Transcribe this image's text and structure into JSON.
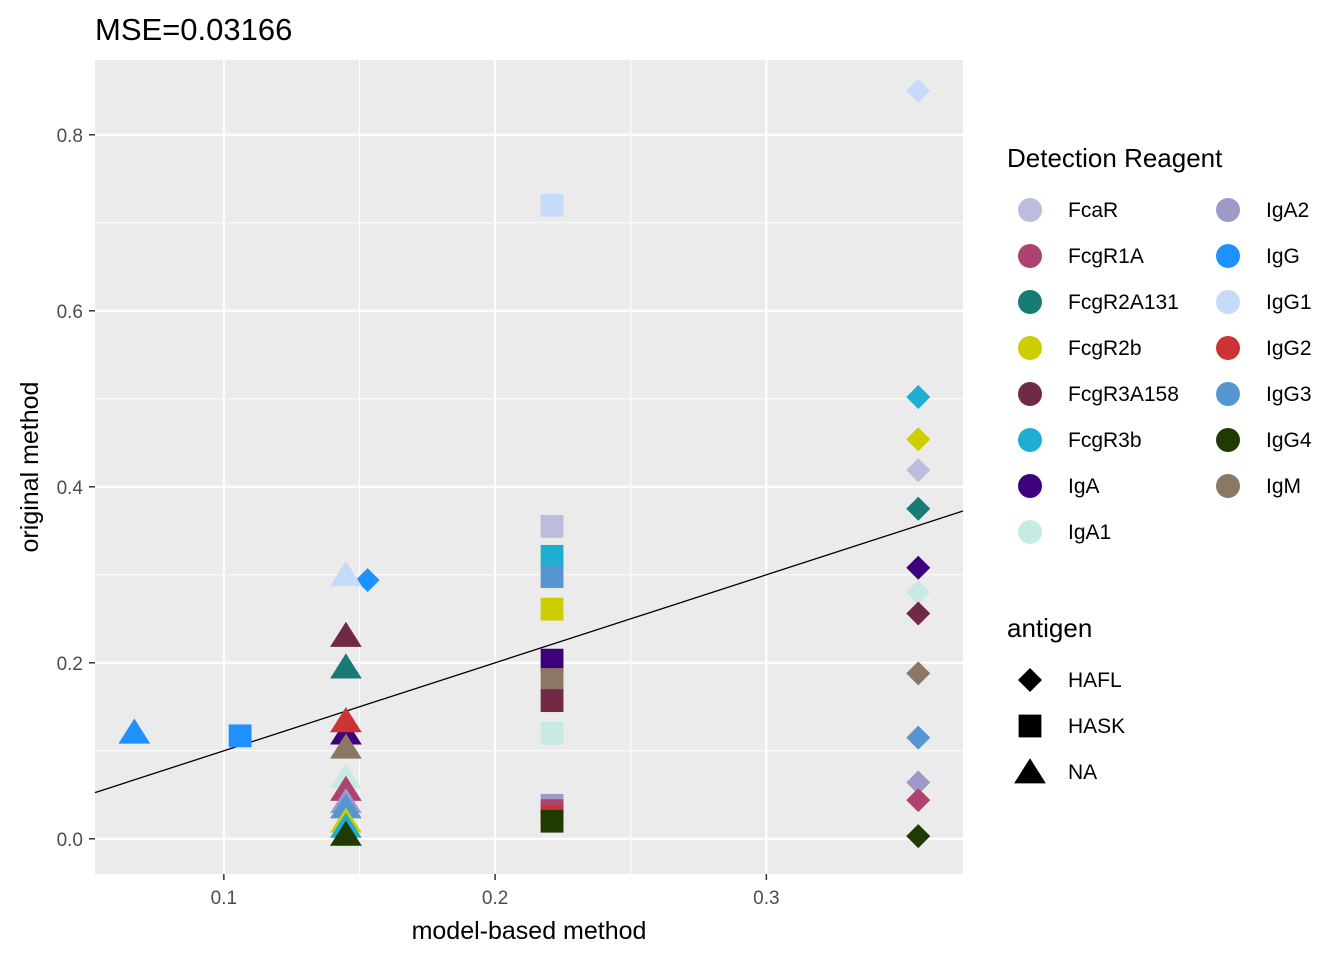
{
  "chart_data": {
    "type": "scatter",
    "title": "MSE=0.03166",
    "xlabel": "model-based method",
    "ylabel": "original method",
    "xlim": [
      0.0525,
      0.3725
    ],
    "ylim": [
      -0.04,
      0.885
    ],
    "x_ticks": [
      {
        "value": 0.1,
        "label": "0.1"
      },
      {
        "value": 0.2,
        "label": "0.2"
      },
      {
        "value": 0.3,
        "label": "0.3"
      }
    ],
    "y_ticks": [
      {
        "value": 0.0,
        "label": "0.0"
      },
      {
        "value": 0.2,
        "label": "0.2"
      },
      {
        "value": 0.4,
        "label": "0.4"
      },
      {
        "value": 0.6,
        "label": "0.6"
      },
      {
        "value": 0.8,
        "label": "0.8"
      }
    ],
    "grid": true,
    "reference_line": {
      "slope": 1,
      "intercept": 0,
      "color": "#000000"
    },
    "color_legend": {
      "title": "Detection Reagent",
      "entries": [
        {
          "label": "FcaR",
          "color": "#BCBCDC"
        },
        {
          "label": "FcgR1A",
          "color": "#AE4371"
        },
        {
          "label": "FcgR2A131",
          "color": "#187A74"
        },
        {
          "label": "FcgR2b",
          "color": "#CDCD00"
        },
        {
          "label": "FcgR3A158",
          "color": "#712A45"
        },
        {
          "label": "FcgR3b",
          "color": "#1FADD1"
        },
        {
          "label": "IgA",
          "color": "#3F007D"
        },
        {
          "label": "IgA1",
          "color": "#C7EAE5"
        },
        {
          "label": "IgA2",
          "color": "#9E9AC8"
        },
        {
          "label": "IgG",
          "color": "#1E90FF"
        },
        {
          "label": "IgG1",
          "color": "#C6DBFA"
        },
        {
          "label": "IgG2",
          "color": "#CB3335"
        },
        {
          "label": "IgG3",
          "color": "#5596D1"
        },
        {
          "label": "IgG4",
          "color": "#203A04"
        },
        {
          "label": "IgM",
          "color": "#8B7764"
        }
      ]
    },
    "shape_legend": {
      "title": "antigen",
      "entries": [
        {
          "label": "HAFL",
          "shape": "diamond"
        },
        {
          "label": "HASK",
          "shape": "square"
        },
        {
          "label": "NA",
          "shape": "triangle"
        }
      ]
    },
    "points": [
      {
        "x": 0.356,
        "y": 0.85,
        "reagent": "IgG1",
        "antigen": "HAFL"
      },
      {
        "x": 0.356,
        "y": 0.502,
        "reagent": "FcgR3b",
        "antigen": "HAFL"
      },
      {
        "x": 0.356,
        "y": 0.454,
        "reagent": "FcgR2b",
        "antigen": "HAFL"
      },
      {
        "x": 0.356,
        "y": 0.419,
        "reagent": "FcaR",
        "antigen": "HAFL"
      },
      {
        "x": 0.356,
        "y": 0.375,
        "reagent": "FcgR2A131",
        "antigen": "HAFL"
      },
      {
        "x": 0.356,
        "y": 0.308,
        "reagent": "IgA",
        "antigen": "HAFL"
      },
      {
        "x": 0.356,
        "y": 0.28,
        "reagent": "IgA1",
        "antigen": "HAFL"
      },
      {
        "x": 0.356,
        "y": 0.256,
        "reagent": "FcgR3A158",
        "antigen": "HAFL"
      },
      {
        "x": 0.356,
        "y": 0.188,
        "reagent": "IgM",
        "antigen": "HAFL"
      },
      {
        "x": 0.356,
        "y": 0.115,
        "reagent": "IgG3",
        "antigen": "HAFL"
      },
      {
        "x": 0.356,
        "y": 0.064,
        "reagent": "IgA2",
        "antigen": "HAFL"
      },
      {
        "x": 0.356,
        "y": 0.044,
        "reagent": "FcgR1A",
        "antigen": "HAFL"
      },
      {
        "x": 0.356,
        "y": 0.003,
        "reagent": "IgG4",
        "antigen": "HAFL"
      },
      {
        "x": 0.153,
        "y": 0.294,
        "reagent": "IgG",
        "antigen": "HAFL"
      },
      {
        "x": 0.221,
        "y": 0.72,
        "reagent": "IgG1",
        "antigen": "HASK"
      },
      {
        "x": 0.221,
        "y": 0.355,
        "reagent": "FcaR",
        "antigen": "HASK"
      },
      {
        "x": 0.221,
        "y": 0.321,
        "reagent": "FcgR3b",
        "antigen": "HASK"
      },
      {
        "x": 0.221,
        "y": 0.298,
        "reagent": "IgG3",
        "antigen": "HASK"
      },
      {
        "x": 0.221,
        "y": 0.261,
        "reagent": "FcgR2b",
        "antigen": "HASK"
      },
      {
        "x": 0.221,
        "y": 0.203,
        "reagent": "IgA",
        "antigen": "HASK"
      },
      {
        "x": 0.221,
        "y": 0.181,
        "reagent": "IgM",
        "antigen": "HASK"
      },
      {
        "x": 0.221,
        "y": 0.157,
        "reagent": "FcgR3A158",
        "antigen": "HASK"
      },
      {
        "x": 0.221,
        "y": 0.12,
        "reagent": "IgA1",
        "antigen": "HASK"
      },
      {
        "x": 0.221,
        "y": 0.038,
        "reagent": "IgA2",
        "antigen": "HASK"
      },
      {
        "x": 0.221,
        "y": 0.032,
        "reagent": "FcgR1A",
        "antigen": "HASK"
      },
      {
        "x": 0.221,
        "y": 0.025,
        "reagent": "IgG2",
        "antigen": "HASK"
      },
      {
        "x": 0.221,
        "y": 0.02,
        "reagent": "IgG4",
        "antigen": "HASK"
      },
      {
        "x": 0.106,
        "y": 0.117,
        "reagent": "IgG",
        "antigen": "HASK"
      },
      {
        "x": 0.145,
        "y": 0.3,
        "reagent": "IgG1",
        "antigen": "NA"
      },
      {
        "x": 0.145,
        "y": 0.231,
        "reagent": "FcgR3A158",
        "antigen": "NA"
      },
      {
        "x": 0.145,
        "y": 0.195,
        "reagent": "FcgR2A131",
        "antigen": "NA"
      },
      {
        "x": 0.145,
        "y": 0.12,
        "reagent": "IgA",
        "antigen": "NA"
      },
      {
        "x": 0.145,
        "y": 0.134,
        "reagent": "IgG2",
        "antigen": "NA"
      },
      {
        "x": 0.145,
        "y": 0.104,
        "reagent": "IgM",
        "antigen": "NA"
      },
      {
        "x": 0.145,
        "y": 0.07,
        "reagent": "IgA1",
        "antigen": "NA"
      },
      {
        "x": 0.145,
        "y": 0.056,
        "reagent": "FcgR1A",
        "antigen": "NA"
      },
      {
        "x": 0.145,
        "y": 0.042,
        "reagent": "IgA2",
        "antigen": "NA"
      },
      {
        "x": 0.145,
        "y": 0.036,
        "reagent": "IgG3",
        "antigen": "NA"
      },
      {
        "x": 0.145,
        "y": 0.02,
        "reagent": "FcgR2b",
        "antigen": "NA"
      },
      {
        "x": 0.145,
        "y": 0.014,
        "reagent": "FcgR3b",
        "antigen": "NA"
      },
      {
        "x": 0.145,
        "y": 0.005,
        "reagent": "IgG4",
        "antigen": "NA"
      },
      {
        "x": 0.067,
        "y": 0.121,
        "reagent": "IgG",
        "antigen": "NA"
      }
    ]
  }
}
